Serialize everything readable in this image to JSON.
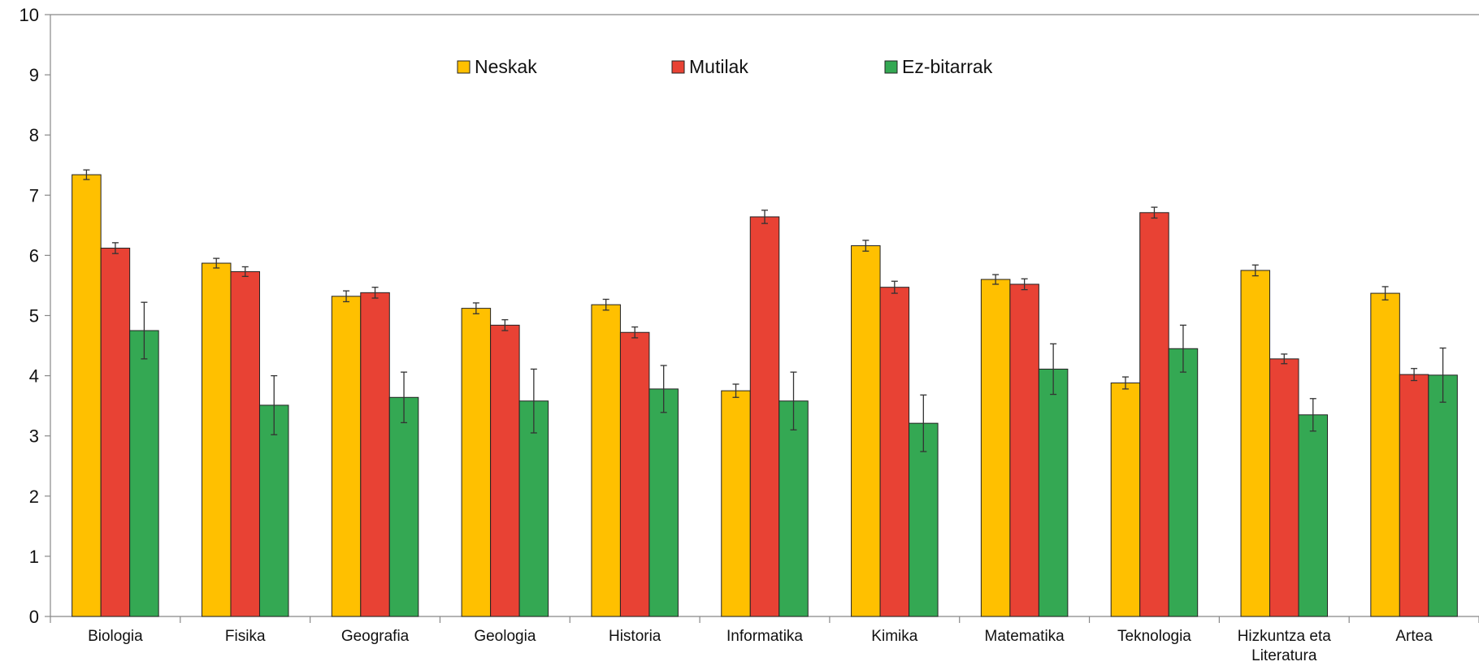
{
  "chart_data": {
    "type": "bar",
    "categories": [
      [
        "Biologia"
      ],
      [
        "Fisika"
      ],
      [
        "Geografia"
      ],
      [
        "Geologia"
      ],
      [
        "Historia"
      ],
      [
        "Informatika"
      ],
      [
        "Kimika"
      ],
      [
        "Matematika"
      ],
      [
        "Teknologia"
      ],
      [
        "Hizkuntza eta",
        "Literatura"
      ],
      [
        "Artea"
      ]
    ],
    "series": [
      {
        "name": "Neskak",
        "color": "#FFC000",
        "values": [
          7.34,
          5.87,
          5.32,
          5.12,
          5.18,
          3.75,
          6.16,
          5.6,
          3.88,
          5.75,
          5.37
        ],
        "errors": [
          0.08,
          0.08,
          0.09,
          0.09,
          0.09,
          0.11,
          0.09,
          0.08,
          0.1,
          0.09,
          0.11
        ]
      },
      {
        "name": "Mutilak",
        "color": "#E84234",
        "values": [
          6.12,
          5.73,
          5.38,
          4.84,
          4.72,
          6.64,
          5.47,
          5.52,
          6.71,
          4.28,
          4.02
        ],
        "errors": [
          0.09,
          0.08,
          0.09,
          0.09,
          0.09,
          0.11,
          0.1,
          0.09,
          0.09,
          0.08,
          0.1
        ]
      },
      {
        "name": "Ez-bitarrak",
        "color": "#34A853",
        "values": [
          4.75,
          3.51,
          3.64,
          3.58,
          3.78,
          3.58,
          3.21,
          4.11,
          4.45,
          3.35,
          4.01
        ],
        "errors": [
          0.47,
          0.49,
          0.42,
          0.53,
          0.39,
          0.48,
          0.47,
          0.42,
          0.39,
          0.27,
          0.45
        ]
      }
    ],
    "ylim": [
      0,
      10
    ],
    "yticks": [
      "0",
      "1",
      "2",
      "3",
      "4",
      "5",
      "6",
      "7",
      "8",
      "9",
      "10"
    ],
    "error_bars": true,
    "grid": false,
    "legend_position": "top-center"
  }
}
